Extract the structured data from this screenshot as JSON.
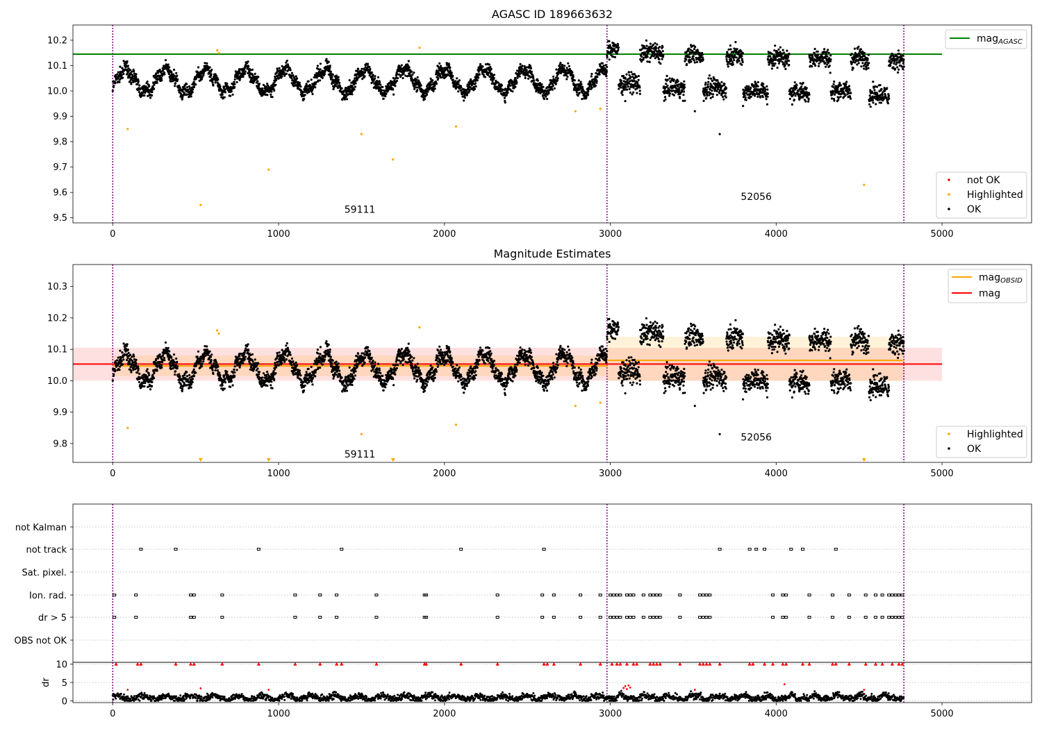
{
  "figure": {
    "colors": {
      "ok": "#000000",
      "highlighted": "#ffa500",
      "not_ok": "#ff0000",
      "agasc": "#008000",
      "mag": "#ff0000",
      "obsid": "#ffa500",
      "obs_boundary": "#800080"
    }
  },
  "chart_data": [
    {
      "type": "scatter",
      "title": "AGASC ID 189663632",
      "xlim": [
        -240,
        5540
      ],
      "ylim": [
        9.48,
        10.26
      ],
      "x_ticks": [
        0,
        1000,
        2000,
        3000,
        4000,
        5000
      ],
      "y_ticks": [
        9.5,
        9.6,
        9.7,
        9.8,
        9.9,
        10.0,
        10.1,
        10.2
      ],
      "obs_boundaries": [
        0,
        2980,
        4770
      ],
      "annotations": [
        {
          "text": "59111",
          "x": 1490,
          "y": 9.52
        },
        {
          "text": "52056",
          "x": 3880,
          "y": 9.57
        }
      ],
      "series": [
        {
          "name": "mag",
          "sub": "AGASC",
          "kind": "hline",
          "y": 10.145,
          "x": [
            -240,
            5000
          ]
        },
        {
          "name": "not OK",
          "kind": "points",
          "x": [],
          "y": []
        },
        {
          "name": "Highlighted",
          "kind": "points",
          "x": [
            90,
            530,
            630,
            640,
            940,
            1500,
            1690,
            1850,
            2070,
            2790,
            2940,
            4530
          ],
          "y": [
            9.85,
            9.55,
            10.16,
            10.15,
            9.69,
            9.83,
            9.73,
            10.17,
            9.86,
            9.92,
            9.93,
            9.63
          ]
        },
        {
          "name": "OK",
          "kind": "points",
          "segments": [
            {
              "x0": 0,
              "x1": 2980,
              "base": 10.04,
              "amp": 0.045,
              "period": 240,
              "noise": 0.03
            },
            {
              "x0": 2980,
              "x1": 4770,
              "kind": "chunks",
              "chunks": [
                [
                  2980,
                  3050,
                  10.155
                ],
                [
                  3050,
                  3180,
                  10.02
                ],
                [
                  3180,
                  3320,
                  10.14
                ],
                [
                  3320,
                  3450,
                  10.0
                ],
                [
                  3450,
                  3560,
                  10.13
                ],
                [
                  3560,
                  3700,
                  10.0
                ],
                [
                  3700,
                  3800,
                  10.13
                ],
                [
                  3800,
                  3950,
                  9.99
                ],
                [
                  3950,
                  4080,
                  10.12
                ],
                [
                  4080,
                  4200,
                  9.985
                ],
                [
                  4200,
                  4330,
                  10.12
                ],
                [
                  4330,
                  4450,
                  9.99
                ],
                [
                  4450,
                  4560,
                  10.12
                ],
                [
                  4560,
                  4680,
                  9.975
                ],
                [
                  4680,
                  4770,
                  10.11
                ]
              ]
            }
          ],
          "outliers": [
            {
              "x": 3660,
              "y": 9.83
            },
            {
              "x": 3510,
              "y": 9.92
            },
            {
              "x": 3090,
              "y": 9.96
            }
          ]
        }
      ],
      "legend_upper": [
        "mag"
      ],
      "legend_lower": [
        "not OK",
        "Highlighted",
        "OK"
      ]
    },
    {
      "type": "scatter",
      "title": "Magnitude Estimates",
      "xlim": [
        -240,
        5540
      ],
      "ylim": [
        9.74,
        10.37
      ],
      "x_ticks": [
        0,
        1000,
        2000,
        3000,
        4000,
        5000
      ],
      "y_ticks": [
        9.8,
        9.9,
        10.0,
        10.1,
        10.2,
        10.3
      ],
      "obs_boundaries": [
        0,
        2980,
        4770
      ],
      "annotations": [
        {
          "text": "59111",
          "x": 1490,
          "y": 9.755
        },
        {
          "text": "52056",
          "x": 3880,
          "y": 9.81
        }
      ],
      "bands": [
        {
          "name": "mag",
          "x": [
            -240,
            5000
          ],
          "y": [
            10.0,
            10.105
          ],
          "color": "#ff0000",
          "opacity": 0.12
        },
        {
          "name": "obsid-1",
          "x": [
            0,
            2980
          ],
          "y": [
            10.015,
            10.08
          ],
          "color": "#ffa500",
          "opacity": 0.15
        },
        {
          "name": "obsid-2",
          "x": [
            2980,
            4770
          ],
          "y": [
            10.0,
            10.14
          ],
          "color": "#ffa500",
          "opacity": 0.15
        }
      ],
      "series": [
        {
          "name": "mag",
          "sub": "OBSID",
          "kind": "steps",
          "segments": [
            [
              0,
              2980,
              10.047
            ],
            [
              2980,
              4770,
              10.065
            ]
          ]
        },
        {
          "name": "mag",
          "kind": "hline",
          "y": 10.053,
          "x": [
            -240,
            5000
          ]
        },
        {
          "name": "Highlighted",
          "kind": "points",
          "x": [
            90,
            630,
            640,
            1500,
            1850,
            2070,
            2790,
            2940
          ],
          "y": [
            9.85,
            10.16,
            10.15,
            9.83,
            10.17,
            9.86,
            9.92,
            9.93
          ],
          "below_range_x": [
            530,
            940,
            1690,
            4530
          ]
        },
        {
          "name": "OK",
          "kind": "points"
        }
      ],
      "legend_upper": [
        "mag_OBSID",
        "mag"
      ],
      "legend_lower": [
        "Highlighted",
        "OK"
      ]
    },
    {
      "type": "scatter",
      "title": "",
      "xlim": [
        -240,
        5540
      ],
      "x_ticks": [
        0,
        1000,
        2000,
        3000,
        4000,
        5000
      ],
      "obs_boundaries": [
        0,
        2980,
        4770
      ],
      "flag_rows": [
        "not Kalman",
        "not track",
        "Sat. pixel.",
        "Ion. rad.",
        "dr > 5",
        "OBS not OK"
      ],
      "flags": {
        "not Kalman": [],
        "not track": [
          170,
          380,
          880,
          1380,
          2100,
          2600,
          3660,
          3840,
          3880,
          3930,
          4090,
          4160,
          4360
        ],
        "Sat. pixel.": [],
        "Ion. rad.": [
          10,
          140,
          470,
          490,
          660,
          1100,
          1250,
          1350,
          1590,
          1880,
          1890,
          2320,
          2590,
          2660,
          2820,
          2940,
          3000,
          3020,
          3040,
          3060,
          3100,
          3120,
          3140,
          3200,
          3240,
          3260,
          3280,
          3300,
          3420,
          3540,
          3560,
          3580,
          3600,
          3980,
          4040,
          4060,
          4200,
          4340,
          4440,
          4540,
          4600,
          4640,
          4680,
          4700,
          4720,
          4740,
          4760
        ],
        "dr > 5": [
          10,
          140,
          470,
          490,
          660,
          1100,
          1250,
          1350,
          1590,
          1880,
          1890,
          2320,
          2590,
          2660,
          2820,
          2940,
          3000,
          3020,
          3040,
          3060,
          3100,
          3120,
          3140,
          3200,
          3240,
          3260,
          3280,
          3300,
          3420,
          3540,
          3560,
          3580,
          3600,
          3980,
          4040,
          4060,
          4200,
          4340,
          4440,
          4540,
          4600,
          4640,
          4680,
          4700,
          4720,
          4740,
          4760
        ],
        "OBS not OK": []
      },
      "dr": {
        "ylabel": "dr",
        "ylim": [
          -0.5,
          10.5
        ],
        "y_ticks": [
          0,
          5,
          10
        ],
        "clipped_x": [
          20,
          150,
          170,
          380,
          470,
          490,
          660,
          880,
          1100,
          1250,
          1350,
          1380,
          1590,
          1880,
          1890,
          2100,
          2320,
          2600,
          2620,
          2660,
          2820,
          2940,
          3010,
          3040,
          3060,
          3100,
          3140,
          3160,
          3240,
          3260,
          3280,
          3300,
          3420,
          3540,
          3560,
          3580,
          3600,
          3660,
          3840,
          3860,
          3930,
          3980,
          4040,
          4060,
          4160,
          4200,
          4340,
          4360,
          4440,
          4540,
          4600,
          4640,
          4700,
          4740,
          4760
        ],
        "outliers_x": [
          90,
          530,
          940,
          3080,
          3090,
          3100,
          3110,
          3120,
          3510,
          4050,
          4530
        ],
        "outliers_y": [
          3.0,
          3.4,
          3.0,
          3.5,
          4.0,
          3.2,
          4.2,
          3.6,
          3.0,
          4.5,
          3.0
        ]
      }
    }
  ]
}
